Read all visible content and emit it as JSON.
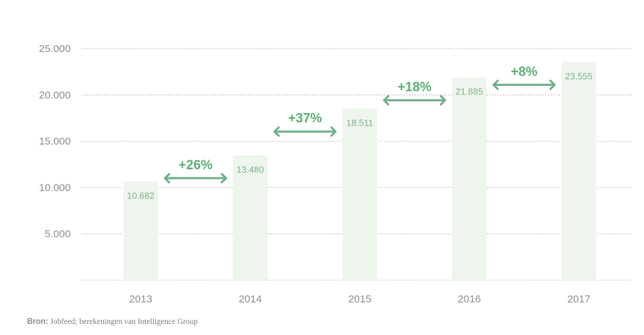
{
  "chart_data": {
    "type": "bar",
    "categories": [
      "2013",
      "2014",
      "2015",
      "2016",
      "2017"
    ],
    "values": [
      10682,
      13480,
      18511,
      21885,
      23555
    ],
    "value_labels": [
      "10.682",
      "13.480",
      "18.511",
      "21.885",
      "23.555"
    ],
    "y_ticks": [
      5000,
      10000,
      15000,
      20000,
      25000
    ],
    "y_tick_labels": [
      "5.000",
      "10.000",
      "15.000",
      "20.000",
      "25.000"
    ],
    "ylim": [
      0,
      25000
    ],
    "grid": true,
    "annotations": [
      {
        "between": [
          "2013",
          "2014"
        ],
        "text": "+26%"
      },
      {
        "between": [
          "2014",
          "2015"
        ],
        "text": "+37%"
      },
      {
        "between": [
          "2015",
          "2016"
        ],
        "text": "+18%"
      },
      {
        "between": [
          "2016",
          "2017"
        ],
        "text": "+8%"
      }
    ],
    "colors": {
      "bar": "#eef5ec",
      "value_label": "#7cb38a",
      "growth": "#5ab071",
      "arrow": "#6fae88",
      "grid": "#b5b5b5",
      "tick": "#8c8c8c"
    }
  },
  "source": {
    "label": "Bron:",
    "text": "Jobfeed; berekeningen van Intelligence Group"
  }
}
